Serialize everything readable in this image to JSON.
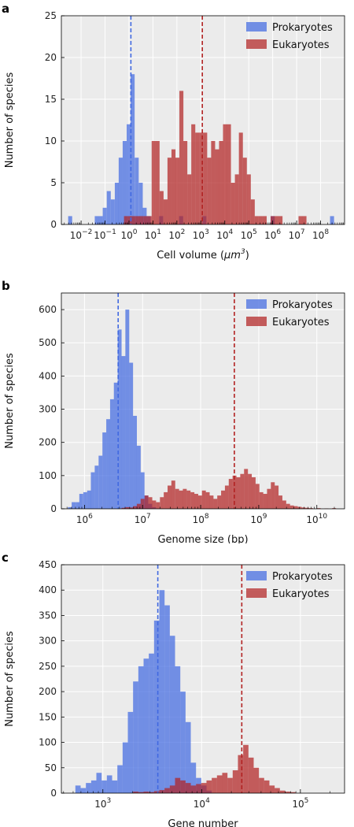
{
  "colors": {
    "prokaryotes": "#4169e1",
    "eukaryotes": "#b22222",
    "plot_bg": "#ebebeb",
    "grid": "#ffffff"
  },
  "chart_data": [
    {
      "panel_label": "a",
      "type": "bar",
      "xscale": "log",
      "xlabel_prefix": "Cell volume (",
      "xlabel_unit": "μm",
      "xlabel_exp": "3",
      "xlabel_suffix": ")",
      "ylabel": "Number of species",
      "xlim": [
        0.0015,
        1000000000
      ],
      "ylim": [
        0,
        25
      ],
      "yticks": [
        0,
        5,
        10,
        15,
        20,
        25
      ],
      "xtick_exponents": [
        -2,
        -1,
        0,
        1,
        2,
        3,
        4,
        5,
        6,
        7,
        8
      ],
      "grid": true,
      "legend_position": "top-right",
      "series": [
        {
          "name": "Prokaryotes",
          "bin_width_log10": 0.167,
          "bins": [
            {
              "x": 0.0035,
              "count": 1
            },
            {
              "x": 0.045,
              "count": 1
            },
            {
              "x": 0.066,
              "count": 1
            },
            {
              "x": 0.097,
              "count": 2
            },
            {
              "x": 0.143,
              "count": 4
            },
            {
              "x": 0.21,
              "count": 3
            },
            {
              "x": 0.31,
              "count": 5
            },
            {
              "x": 0.45,
              "count": 8
            },
            {
              "x": 0.66,
              "count": 10
            },
            {
              "x": 0.97,
              "count": 12
            },
            {
              "x": 1.42,
              "count": 18
            },
            {
              "x": 2.1,
              "count": 8
            },
            {
              "x": 3.1,
              "count": 5
            },
            {
              "x": 4.5,
              "count": 2
            },
            {
              "x": 6.6,
              "count": 1
            },
            {
              "x": 22,
              "count": 1
            },
            {
              "x": 150,
              "count": 1
            },
            {
              "x": 1400,
              "count": 1
            },
            {
              "x": 1000000,
              "count": 1
            },
            {
              "x": 300000000,
              "count": 1
            }
          ],
          "median_x": 1.2
        },
        {
          "name": "Eukaryotes",
          "bin_width_log10": 0.167,
          "bins": [
            {
              "x": 0.75,
              "count": 1
            },
            {
              "x": 1.1,
              "count": 1
            },
            {
              "x": 1.6,
              "count": 1
            },
            {
              "x": 2.35,
              "count": 1
            },
            {
              "x": 3.4,
              "count": 1
            },
            {
              "x": 5.0,
              "count": 1
            },
            {
              "x": 7.3,
              "count": 1
            },
            {
              "x": 10.7,
              "count": 10
            },
            {
              "x": 15.6,
              "count": 10
            },
            {
              "x": 22.9,
              "count": 4
            },
            {
              "x": 33.5,
              "count": 3
            },
            {
              "x": 49,
              "count": 8
            },
            {
              "x": 72,
              "count": 9
            },
            {
              "x": 105,
              "count": 8
            },
            {
              "x": 154,
              "count": 16
            },
            {
              "x": 225,
              "count": 10
            },
            {
              "x": 330,
              "count": 6
            },
            {
              "x": 483,
              "count": 12
            },
            {
              "x": 707,
              "count": 11
            },
            {
              "x": 1035,
              "count": 11
            },
            {
              "x": 1515,
              "count": 11
            },
            {
              "x": 2220,
              "count": 8
            },
            {
              "x": 3250,
              "count": 10
            },
            {
              "x": 4760,
              "count": 9
            },
            {
              "x": 6970,
              "count": 10
            },
            {
              "x": 10200,
              "count": 12
            },
            {
              "x": 14900,
              "count": 12
            },
            {
              "x": 21900,
              "count": 5
            },
            {
              "x": 32000,
              "count": 6
            },
            {
              "x": 46900,
              "count": 11
            },
            {
              "x": 68700,
              "count": 8
            },
            {
              "x": 100500,
              "count": 6
            },
            {
              "x": 147000,
              "count": 3
            },
            {
              "x": 215000,
              "count": 1
            },
            {
              "x": 315000,
              "count": 1
            },
            {
              "x": 462000,
              "count": 1
            },
            {
              "x": 990000,
              "count": 1
            },
            {
              "x": 1450000,
              "count": 1
            },
            {
              "x": 2120000,
              "count": 1
            },
            {
              "x": 14500000,
              "count": 1
            },
            {
              "x": 21200000,
              "count": 1
            }
          ],
          "median_x": 1150
        }
      ]
    },
    {
      "panel_label": "b",
      "type": "bar",
      "xscale": "log",
      "xlabel": "Genome size (bp)",
      "ylabel": "Number of species",
      "xlim": [
        400000,
        30000000000
      ],
      "ylim": [
        0,
        650
      ],
      "yticks": [
        0,
        100,
        200,
        300,
        400,
        500,
        600
      ],
      "xtick_exponents": [
        6,
        7,
        8,
        9,
        10
      ],
      "grid": true,
      "legend_position": "top-right",
      "series": [
        {
          "name": "Prokaryotes",
          "bin_width_log10": 0.0667,
          "bins": [
            {
              "x": 560000,
              "count": 5
            },
            {
              "x": 650000,
              "count": 20
            },
            {
              "x": 760000,
              "count": 20
            },
            {
              "x": 880000,
              "count": 45
            },
            {
              "x": 1030000,
              "count": 50
            },
            {
              "x": 1200000,
              "count": 55
            },
            {
              "x": 1390000,
              "count": 110
            },
            {
              "x": 1620000,
              "count": 130
            },
            {
              "x": 1890000,
              "count": 160
            },
            {
              "x": 2200000,
              "count": 230
            },
            {
              "x": 2560000,
              "count": 270
            },
            {
              "x": 2980000,
              "count": 330
            },
            {
              "x": 3460000,
              "count": 380
            },
            {
              "x": 4030000,
              "count": 540
            },
            {
              "x": 4690000,
              "count": 460
            },
            {
              "x": 5460000,
              "count": 600
            },
            {
              "x": 6350000,
              "count": 440
            },
            {
              "x": 7390000,
              "count": 280
            },
            {
              "x": 8600000,
              "count": 190
            },
            {
              "x": 10000000,
              "count": 110
            },
            {
              "x": 11600000,
              "count": 40
            },
            {
              "x": 13500000,
              "count": 15
            },
            {
              "x": 15800000,
              "count": 5
            }
          ],
          "median_x": 3800000
        },
        {
          "name": "Eukaryotes",
          "bin_width_log10": 0.0667,
          "bins": [
            {
              "x": 4700000,
              "count": 3
            },
            {
              "x": 5500000,
              "count": 5
            },
            {
              "x": 6400000,
              "count": 4
            },
            {
              "x": 7400000,
              "count": 8
            },
            {
              "x": 8600000,
              "count": 15
            },
            {
              "x": 10000000,
              "count": 30
            },
            {
              "x": 11700000,
              "count": 40
            },
            {
              "x": 13600000,
              "count": 35
            },
            {
              "x": 15800000,
              "count": 25
            },
            {
              "x": 18400000,
              "count": 20
            },
            {
              "x": 21500000,
              "count": 35
            },
            {
              "x": 25000000,
              "count": 50
            },
            {
              "x": 29100000,
              "count": 70
            },
            {
              "x": 33800000,
              "count": 85
            },
            {
              "x": 39400000,
              "count": 60
            },
            {
              "x": 45800000,
              "count": 55
            },
            {
              "x": 53300000,
              "count": 60
            },
            {
              "x": 62000000,
              "count": 55
            },
            {
              "x": 72200000,
              "count": 50
            },
            {
              "x": 84000000,
              "count": 45
            },
            {
              "x": 97700000,
              "count": 40
            },
            {
              "x": 113700000,
              "count": 55
            },
            {
              "x": 132300000,
              "count": 50
            },
            {
              "x": 154000000,
              "count": 40
            },
            {
              "x": 179200000,
              "count": 30
            },
            {
              "x": 208500000,
              "count": 40
            },
            {
              "x": 242700000,
              "count": 55
            },
            {
              "x": 282500000,
              "count": 70
            },
            {
              "x": 328800000,
              "count": 90
            },
            {
              "x": 382600000,
              "count": 100
            },
            {
              "x": 445300000,
              "count": 95
            },
            {
              "x": 518300000,
              "count": 105
            },
            {
              "x": 603200000,
              "count": 120
            },
            {
              "x": 702000000,
              "count": 105
            },
            {
              "x": 817000000,
              "count": 95
            },
            {
              "x": 950900000,
              "count": 75
            },
            {
              "x": 1106700000,
              "count": 50
            },
            {
              "x": 1288000000,
              "count": 45
            },
            {
              "x": 1499000000,
              "count": 60
            },
            {
              "x": 1744500000,
              "count": 80
            },
            {
              "x": 2030000000,
              "count": 70
            },
            {
              "x": 2363000000,
              "count": 40
            },
            {
              "x": 2750000000,
              "count": 25
            },
            {
              "x": 3200000000,
              "count": 15
            },
            {
              "x": 3725000000,
              "count": 10
            },
            {
              "x": 4335000000,
              "count": 8
            },
            {
              "x": 5045000000,
              "count": 6
            },
            {
              "x": 5870000000,
              "count": 4
            },
            {
              "x": 6830000000,
              "count": 3
            },
            {
              "x": 7950000000,
              "count": 2
            },
            {
              "x": 10770000000,
              "count": 2
            },
            {
              "x": 14600000000,
              "count": 1
            },
            {
              "x": 19800000000,
              "count": 2
            }
          ],
          "median_x": 380000000
        }
      ]
    },
    {
      "panel_label": "c",
      "type": "bar",
      "xscale": "log",
      "xlabel": "Gene number",
      "ylabel": "Number of species",
      "xlim": [
        380,
        280000
      ],
      "ylim": [
        0,
        450
      ],
      "yticks": [
        0,
        50,
        100,
        150,
        200,
        250,
        300,
        350,
        400,
        450
      ],
      "xtick_exponents": [
        3,
        4,
        5
      ],
      "grid": true,
      "legend_position": "top-right",
      "series": [
        {
          "name": "Prokaryotes",
          "bin_width_log10": 0.0533,
          "bins": [
            {
              "x": 560,
              "count": 15
            },
            {
              "x": 633,
              "count": 10
            },
            {
              "x": 716,
              "count": 20
            },
            {
              "x": 809,
              "count": 25
            },
            {
              "x": 914,
              "count": 40
            },
            {
              "x": 1033,
              "count": 25
            },
            {
              "x": 1167,
              "count": 35
            },
            {
              "x": 1319,
              "count": 25
            },
            {
              "x": 1491,
              "count": 55
            },
            {
              "x": 1685,
              "count": 100
            },
            {
              "x": 1904,
              "count": 160
            },
            {
              "x": 2151,
              "count": 220
            },
            {
              "x": 2431,
              "count": 250
            },
            {
              "x": 2747,
              "count": 265
            },
            {
              "x": 3104,
              "count": 275
            },
            {
              "x": 3508,
              "count": 340
            },
            {
              "x": 3964,
              "count": 400
            },
            {
              "x": 4479,
              "count": 370
            },
            {
              "x": 5061,
              "count": 310
            },
            {
              "x": 5720,
              "count": 250
            },
            {
              "x": 6463,
              "count": 200
            },
            {
              "x": 7303,
              "count": 140
            },
            {
              "x": 8253,
              "count": 60
            },
            {
              "x": 9325,
              "count": 30
            },
            {
              "x": 10538,
              "count": 15
            },
            {
              "x": 11908,
              "count": 5
            }
          ],
          "median_x": 3600
        },
        {
          "name": "Eukaryotes",
          "bin_width_log10": 0.0533,
          "bins": [
            {
              "x": 2151,
              "count": 3
            },
            {
              "x": 2431,
              "count": 2
            },
            {
              "x": 2747,
              "count": 3
            },
            {
              "x": 3104,
              "count": 2
            },
            {
              "x": 3508,
              "count": 4
            },
            {
              "x": 3964,
              "count": 6
            },
            {
              "x": 4479,
              "count": 10
            },
            {
              "x": 5061,
              "count": 15
            },
            {
              "x": 5720,
              "count": 30
            },
            {
              "x": 6463,
              "count": 25
            },
            {
              "x": 7303,
              "count": 20
            },
            {
              "x": 8253,
              "count": 15
            },
            {
              "x": 9325,
              "count": 18
            },
            {
              "x": 10538,
              "count": 20
            },
            {
              "x": 11908,
              "count": 25
            },
            {
              "x": 13456,
              "count": 30
            },
            {
              "x": 15205,
              "count": 35
            },
            {
              "x": 17181,
              "count": 40
            },
            {
              "x": 19414,
              "count": 30
            },
            {
              "x": 21937,
              "count": 45
            },
            {
              "x": 24789,
              "count": 75
            },
            {
              "x": 28011,
              "count": 95
            },
            {
              "x": 31652,
              "count": 70
            },
            {
              "x": 35766,
              "count": 50
            },
            {
              "x": 40415,
              "count": 30
            },
            {
              "x": 45668,
              "count": 25
            },
            {
              "x": 51604,
              "count": 15
            },
            {
              "x": 58311,
              "count": 10
            },
            {
              "x": 65890,
              "count": 5
            },
            {
              "x": 74455,
              "count": 3
            },
            {
              "x": 84132,
              "count": 2
            }
          ],
          "median_x": 25500
        }
      ]
    }
  ]
}
